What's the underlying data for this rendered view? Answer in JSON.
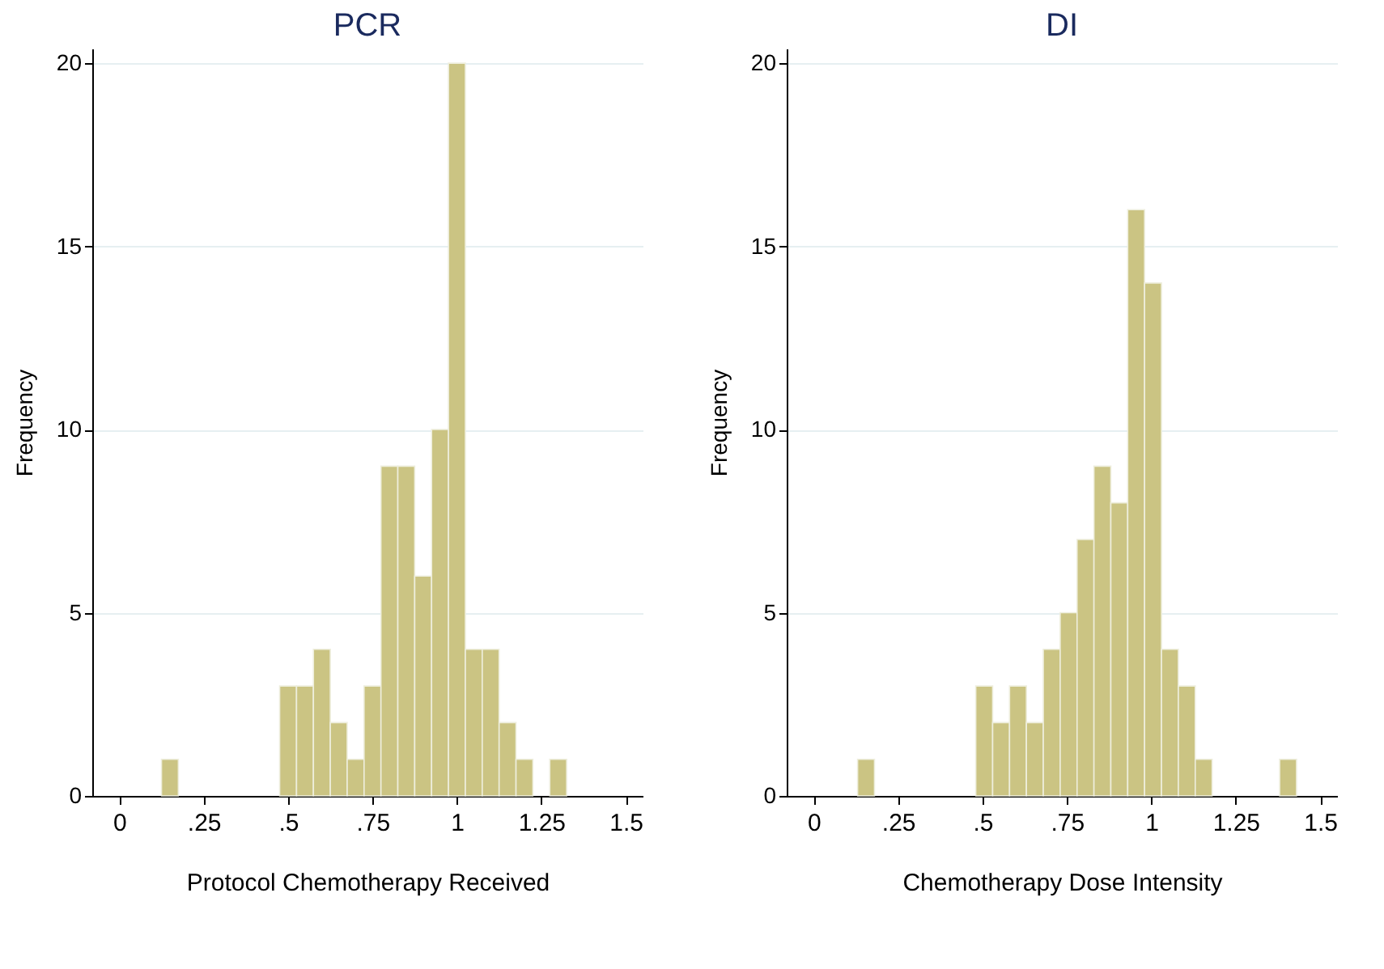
{
  "chart_data": [
    {
      "type": "histogram",
      "title": "PCR",
      "xlabel": "Protocol Chemotherapy Received",
      "ylabel": "Frequency",
      "color": "#cbc483",
      "bins": [
        0.125,
        0.175,
        0.225,
        0.275,
        0.325,
        0.375,
        0.425,
        0.475,
        0.525,
        0.575,
        0.625,
        0.675,
        0.725,
        0.775,
        0.825,
        0.875,
        0.925,
        0.975,
        1.025,
        1.075,
        1.125,
        1.175,
        1.225,
        1.275,
        1.325
      ],
      "values": [
        1,
        0,
        0,
        0,
        0,
        0,
        0,
        3,
        3,
        4,
        2,
        1,
        3,
        9,
        9,
        6,
        10,
        20,
        4,
        4,
        2,
        1,
        0,
        1
      ],
      "xlim": [
        -0.08,
        1.55
      ],
      "xticks": [
        0,
        {
          "value": 0.25,
          "label": ".25"
        },
        {
          "value": 0.5,
          "label": ".5"
        },
        {
          "value": 0.75,
          "label": ".75"
        },
        1,
        1.25,
        1.5
      ],
      "ylim": [
        0,
        20.4
      ],
      "yticks": [
        0,
        5,
        10,
        15,
        20
      ],
      "grid": "y"
    },
    {
      "type": "histogram",
      "title": "DI",
      "xlabel": "Chemotherapy Dose Intensity",
      "ylabel": "Frequency",
      "color": "#cbc483",
      "bins": [
        0.13,
        0.18,
        0.23,
        0.28,
        0.33,
        0.38,
        0.43,
        0.48,
        0.53,
        0.58,
        0.63,
        0.68,
        0.73,
        0.78,
        0.83,
        0.88,
        0.93,
        0.98,
        1.03,
        1.08,
        1.13,
        1.18,
        1.23,
        1.28,
        1.33,
        1.38,
        1.43
      ],
      "values": [
        1,
        0,
        0,
        0,
        0,
        0,
        0,
        3,
        2,
        3,
        2,
        4,
        5,
        7,
        9,
        8,
        16,
        14,
        4,
        3,
        1,
        0,
        0,
        0,
        0,
        1
      ],
      "xlim": [
        -0.08,
        1.55
      ],
      "xticks": [
        0,
        {
          "value": 0.25,
          "label": ".25"
        },
        {
          "value": 0.5,
          "label": ".5"
        },
        {
          "value": 0.75,
          "label": ".75"
        },
        1,
        1.25,
        1.5
      ],
      "ylim": [
        0,
        20.4
      ],
      "yticks": [
        0,
        5,
        10,
        15,
        20
      ],
      "grid": "y"
    }
  ]
}
